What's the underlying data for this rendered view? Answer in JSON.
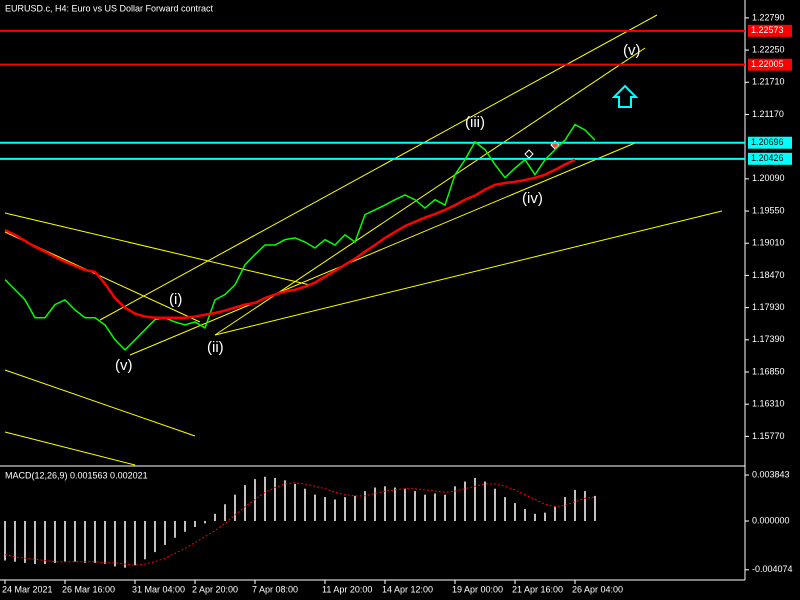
{
  "chart_data": [
    {
      "type": "line",
      "title": "EURUSD.c, H4:  Euro vs US Dollar Forward contract",
      "categories": [
        "24 Mar 2021",
        null,
        null,
        null,
        null,
        null,
        "26 Mar 16:00",
        null,
        null,
        null,
        null,
        null,
        null,
        "31 Mar 04:00",
        null,
        null,
        null,
        null,
        null,
        "2 Apr 20:00",
        null,
        null,
        null,
        null,
        null,
        "7 Apr 08:00",
        null,
        null,
        null,
        null,
        null,
        null,
        "11 Apr 20:00",
        null,
        null,
        null,
        null,
        null,
        "14 Apr 12:00",
        null,
        null,
        null,
        null,
        null,
        null,
        "19 Apr 00:00",
        null,
        null,
        null,
        null,
        null,
        "21 Apr 16:00",
        null,
        null,
        null,
        null,
        null,
        "26 Apr 04:00",
        null,
        null
      ],
      "series": [
        {
          "color": "#00ff00",
          "values": [
            1.184,
            1.1823,
            1.1806,
            1.1776,
            1.1776,
            1.1798,
            1.1806,
            1.1789,
            1.1776,
            1.1776,
            1.1764,
            1.1739,
            1.1722,
            1.1739,
            1.1756,
            1.1773,
            1.1776,
            1.1769,
            1.1764,
            1.1769,
            1.1759,
            1.1806,
            1.1815,
            1.1831,
            1.1865,
            1.1882,
            1.1898,
            1.1898,
            1.1907,
            1.191,
            1.1903,
            1.1893,
            1.1907,
            1.1898,
            1.1915,
            1.1903,
            1.1949,
            1.1957,
            1.1965,
            1.1974,
            1.1982,
            1.1974,
            1.196,
            1.1974,
            1.1965,
            1.2016,
            1.2041,
            1.2071,
            1.2058,
            1.2033,
            1.2011,
            1.2027,
            1.2041,
            1.2016,
            1.2041,
            1.2058,
            1.2074,
            1.21,
            1.2091,
            1.2074
          ]
        },
        {
          "color": "#ff0000",
          "values": [
            1.1923,
            1.1915,
            1.1905,
            1.1895,
            1.1887,
            1.1878,
            1.187,
            1.1863,
            1.1856,
            1.1853,
            1.1833,
            1.1809,
            1.1793,
            1.1783,
            1.1778,
            1.1776,
            1.1776,
            1.1776,
            1.1776,
            1.1778,
            1.1781,
            1.1784,
            1.1788,
            1.1793,
            1.1798,
            1.1801,
            1.1809,
            1.1815,
            1.182,
            1.1823,
            1.1828,
            1.1835,
            1.1845,
            1.1855,
            1.1865,
            1.1875,
            1.1887,
            1.1898,
            1.191,
            1.192,
            1.193,
            1.1937,
            1.1944,
            1.195,
            1.1957,
            1.1965,
            1.1974,
            1.1981,
            1.1991,
            1.1999,
            1.2002,
            1.2004,
            1.2007,
            1.2011,
            1.2016,
            1.2024,
            1.2033,
            1.2041,
            null,
            null
          ]
        }
      ],
      "levels": [
        {
          "value": 1.22573,
          "label": "1.22573",
          "color": "#ff0000"
        },
        {
          "value": 1.22005,
          "label": "1.22005",
          "color": "#ff0000"
        },
        {
          "value": 1.20696,
          "label": "1.20696",
          "color": "#00ffff"
        },
        {
          "value": 1.20426,
          "label": "1.20426",
          "color": "#00ffff"
        }
      ],
      "annotations": [
        "(v)",
        "(i)",
        "(ii)",
        "(iii)",
        "(iv)",
        "(v)"
      ],
      "ylim": [
        1.1529,
        1.2309
      ],
      "yticks": [
        {
          "value": 1.2279,
          "label": "1.22790"
        },
        {
          "value": 1.2225,
          "label": "1.22250"
        },
        {
          "value": 1.2171,
          "label": "1.21710"
        },
        {
          "value": 1.2117,
          "label": "1.21170"
        },
        {
          "value": 1.2009,
          "label": "1.20090"
        },
        {
          "value": 1.1955,
          "label": "1.19550"
        },
        {
          "value": 1.1901,
          "label": "1.19010"
        },
        {
          "value": 1.1847,
          "label": "1.18470"
        },
        {
          "value": 1.1793,
          "label": "1.17930"
        },
        {
          "value": 1.1739,
          "label": "1.17390"
        },
        {
          "value": 1.1685,
          "label": "1.16850"
        },
        {
          "value": 1.1631,
          "label": "1.16310"
        },
        {
          "value": 1.1577,
          "label": "1.15770"
        }
      ]
    },
    {
      "type": "bar",
      "title": "MACD(12,26,9) 0.001563 0.002021",
      "series": [
        {
          "color": "#c0c0c0",
          "values": [
            -0.0033,
            -0.0034,
            -0.0035,
            -0.0036,
            -0.0036,
            -0.0035,
            -0.0034,
            -0.0034,
            -0.0035,
            -0.0035,
            -0.0036,
            -0.0038,
            -0.0039,
            -0.0037,
            -0.0032,
            -0.0026,
            -0.002,
            -0.0014,
            -0.0009,
            -0.0005,
            -0.0002,
            0.0006,
            0.0014,
            0.0022,
            0.003,
            0.0035,
            0.0037,
            0.0036,
            0.0034,
            0.0031,
            0.0027,
            0.0022,
            0.002,
            0.0018,
            0.002,
            0.0021,
            0.0025,
            0.0028,
            0.0029,
            0.0028,
            0.0027,
            0.0025,
            0.0022,
            0.0023,
            0.0022,
            0.0029,
            0.0033,
            0.0036,
            0.0033,
            0.0027,
            0.002,
            0.0015,
            0.001,
            0.0006,
            0.0007,
            0.0012,
            0.002,
            0.0026,
            0.0025,
            0.0021
          ]
        },
        {
          "color": "#ff0000",
          "values": [
            -0.0028,
            -0.003,
            -0.0031,
            -0.0032,
            -0.0033,
            -0.0034,
            -0.0034,
            -0.0034,
            -0.0034,
            -0.0034,
            -0.0035,
            -0.0035,
            -0.0036,
            -0.0037,
            -0.0036,
            -0.0034,
            -0.0031,
            -0.0027,
            -0.0023,
            -0.0018,
            -0.0013,
            -0.0008,
            -0.0002,
            0.0005,
            0.0012,
            0.0018,
            0.0024,
            0.0028,
            0.0031,
            0.0032,
            0.0031,
            0.0029,
            0.0027,
            0.0024,
            0.0022,
            0.0021,
            0.0021,
            0.0023,
            0.0025,
            0.0026,
            0.0027,
            0.0027,
            0.0026,
            0.0025,
            0.0024,
            0.0025,
            0.0027,
            0.0029,
            0.0031,
            0.0031,
            0.0029,
            0.0026,
            0.0022,
            0.0018,
            0.0014,
            0.0012,
            0.0013,
            0.0016,
            0.0019,
            0.002
          ]
        }
      ],
      "ylim": [
        -0.00493,
        0.00443
      ],
      "yticks": [
        {
          "value": 0.003843,
          "label": "0.003843"
        },
        {
          "value": 0,
          "label": "0.000000"
        },
        {
          "value": -0.004074,
          "label": "-0.004074"
        }
      ]
    }
  ]
}
